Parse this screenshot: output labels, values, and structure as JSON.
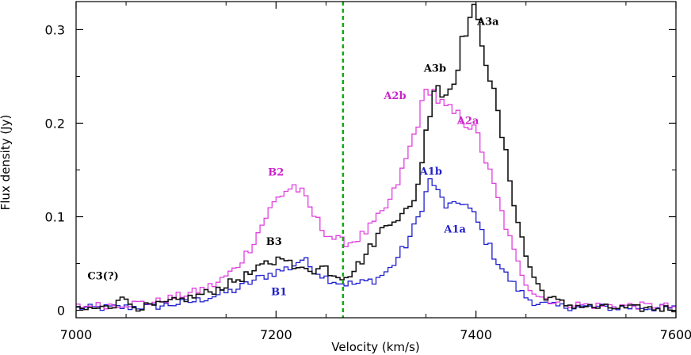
{
  "chart_data": {
    "type": "line",
    "xlabel": "Velocity (km/s)",
    "ylabel": "Flux density (Jy)",
    "xlim": [
      7000,
      7600
    ],
    "ylim": [
      -0.008,
      0.33
    ],
    "x_ticks": [
      7000,
      7200,
      7400,
      7600
    ],
    "x_tick_labels": [
      "7000",
      "7200",
      "7400",
      "7600"
    ],
    "y_ticks": [
      0,
      0.1,
      0.2,
      0.3
    ],
    "y_tick_labels": [
      "0",
      "0.1",
      "0.2",
      "0.3"
    ],
    "step_width": 4,
    "grid": false,
    "legend": "none",
    "reference_line": {
      "x": 7267,
      "color": "#11aa11",
      "style": "dashed"
    },
    "series": [
      {
        "color": "#1f1fd0",
        "points": [
          [
            7000,
            0.002
          ],
          [
            7040,
            0.003
          ],
          [
            7080,
            0.004
          ],
          [
            7120,
            0.01
          ],
          [
            7140,
            0.016
          ],
          [
            7160,
            0.022
          ],
          [
            7180,
            0.033
          ],
          [
            7200,
            0.041
          ],
          [
            7215,
            0.046
          ],
          [
            7222,
            0.052
          ],
          [
            7227,
            0.055
          ],
          [
            7235,
            0.046
          ],
          [
            7250,
            0.035
          ],
          [
            7265,
            0.029
          ],
          [
            7280,
            0.028
          ],
          [
            7300,
            0.033
          ],
          [
            7315,
            0.045
          ],
          [
            7330,
            0.07
          ],
          [
            7340,
            0.092
          ],
          [
            7350,
            0.125
          ],
          [
            7355,
            0.142
          ],
          [
            7362,
            0.125
          ],
          [
            7370,
            0.112
          ],
          [
            7378,
            0.11
          ],
          [
            7385,
            0.118
          ],
          [
            7392,
            0.11
          ],
          [
            7400,
            0.098
          ],
          [
            7410,
            0.075
          ],
          [
            7420,
            0.055
          ],
          [
            7430,
            0.038
          ],
          [
            7440,
            0.025
          ],
          [
            7450,
            0.014
          ],
          [
            7460,
            0.008
          ],
          [
            7480,
            0.004
          ],
          [
            7520,
            0.003
          ],
          [
            7560,
            0.003
          ],
          [
            7600,
            0.002
          ]
        ]
      },
      {
        "color": "#e040e0",
        "points": [
          [
            7000,
            0.004
          ],
          [
            7040,
            0.006
          ],
          [
            7080,
            0.009
          ],
          [
            7120,
            0.02
          ],
          [
            7140,
            0.028
          ],
          [
            7160,
            0.045
          ],
          [
            7175,
            0.068
          ],
          [
            7190,
            0.1
          ],
          [
            7200,
            0.118
          ],
          [
            7210,
            0.128
          ],
          [
            7218,
            0.133
          ],
          [
            7226,
            0.125
          ],
          [
            7236,
            0.105
          ],
          [
            7246,
            0.088
          ],
          [
            7256,
            0.078
          ],
          [
            7266,
            0.073
          ],
          [
            7276,
            0.073
          ],
          [
            7286,
            0.08
          ],
          [
            7296,
            0.09
          ],
          [
            7306,
            0.103
          ],
          [
            7316,
            0.12
          ],
          [
            7326,
            0.148
          ],
          [
            7336,
            0.18
          ],
          [
            7344,
            0.21
          ],
          [
            7350,
            0.232
          ],
          [
            7355,
            0.24
          ],
          [
            7362,
            0.225
          ],
          [
            7370,
            0.215
          ],
          [
            7378,
            0.21
          ],
          [
            7386,
            0.205
          ],
          [
            7394,
            0.198
          ],
          [
            7402,
            0.185
          ],
          [
            7410,
            0.16
          ],
          [
            7420,
            0.125
          ],
          [
            7430,
            0.09
          ],
          [
            7440,
            0.055
          ],
          [
            7450,
            0.03
          ],
          [
            7460,
            0.017
          ],
          [
            7480,
            0.008
          ],
          [
            7520,
            0.005
          ],
          [
            7560,
            0.005
          ],
          [
            7600,
            0.004
          ]
        ]
      },
      {
        "color": "#111111",
        "points": [
          [
            7000,
            0.0
          ],
          [
            7030,
            0.003
          ],
          [
            7040,
            0.005
          ],
          [
            7044,
            0.024
          ],
          [
            7048,
            0.01
          ],
          [
            7060,
            0.003
          ],
          [
            7080,
            0.005
          ],
          [
            7100,
            0.01
          ],
          [
            7120,
            0.015
          ],
          [
            7140,
            0.022
          ],
          [
            7160,
            0.032
          ],
          [
            7180,
            0.042
          ],
          [
            7190,
            0.05
          ],
          [
            7200,
            0.052
          ],
          [
            7208,
            0.062
          ],
          [
            7215,
            0.048
          ],
          [
            7222,
            0.042
          ],
          [
            7230,
            0.047
          ],
          [
            7240,
            0.042
          ],
          [
            7248,
            0.048
          ],
          [
            7255,
            0.04
          ],
          [
            7265,
            0.036
          ],
          [
            7275,
            0.04
          ],
          [
            7285,
            0.052
          ],
          [
            7295,
            0.068
          ],
          [
            7305,
            0.085
          ],
          [
            7315,
            0.098
          ],
          [
            7325,
            0.1
          ],
          [
            7335,
            0.11
          ],
          [
            7342,
            0.135
          ],
          [
            7348,
            0.175
          ],
          [
            7354,
            0.215
          ],
          [
            7360,
            0.25
          ],
          [
            7366,
            0.23
          ],
          [
            7372,
            0.232
          ],
          [
            7380,
            0.255
          ],
          [
            7386,
            0.285
          ],
          [
            7392,
            0.31
          ],
          [
            7398,
            0.318
          ],
          [
            7404,
            0.298
          ],
          [
            7410,
            0.27
          ],
          [
            7420,
            0.22
          ],
          [
            7430,
            0.165
          ],
          [
            7440,
            0.105
          ],
          [
            7450,
            0.058
          ],
          [
            7460,
            0.03
          ],
          [
            7470,
            0.015
          ],
          [
            7490,
            0.006
          ],
          [
            7520,
            0.003
          ],
          [
            7560,
            0.002
          ],
          [
            7600,
            0.002
          ]
        ]
      }
    ],
    "annotations": [
      {
        "text": "A3a",
        "x": 7412,
        "y": 0.305,
        "color": "#000000"
      },
      {
        "text": "A3b",
        "x": 7359,
        "y": 0.255,
        "color": "#000000"
      },
      {
        "text": "A2b",
        "x": 7319,
        "y": 0.226,
        "color": "#cc22cc"
      },
      {
        "text": "A2a",
        "x": 7392,
        "y": 0.199,
        "color": "#cc22cc"
      },
      {
        "text": "A1b",
        "x": 7355,
        "y": 0.145,
        "color": "#2020cc"
      },
      {
        "text": "A1a",
        "x": 7379,
        "y": 0.083,
        "color": "#2020cc"
      },
      {
        "text": "B2",
        "x": 7200,
        "y": 0.144,
        "color": "#cc22cc"
      },
      {
        "text": "B3",
        "x": 7198,
        "y": 0.07,
        "color": "#000000"
      },
      {
        "text": "B1",
        "x": 7203,
        "y": 0.016,
        "color": "#2020cc"
      },
      {
        "text": "C3(?)",
        "x": 7027,
        "y": 0.033,
        "color": "#000000"
      }
    ]
  }
}
